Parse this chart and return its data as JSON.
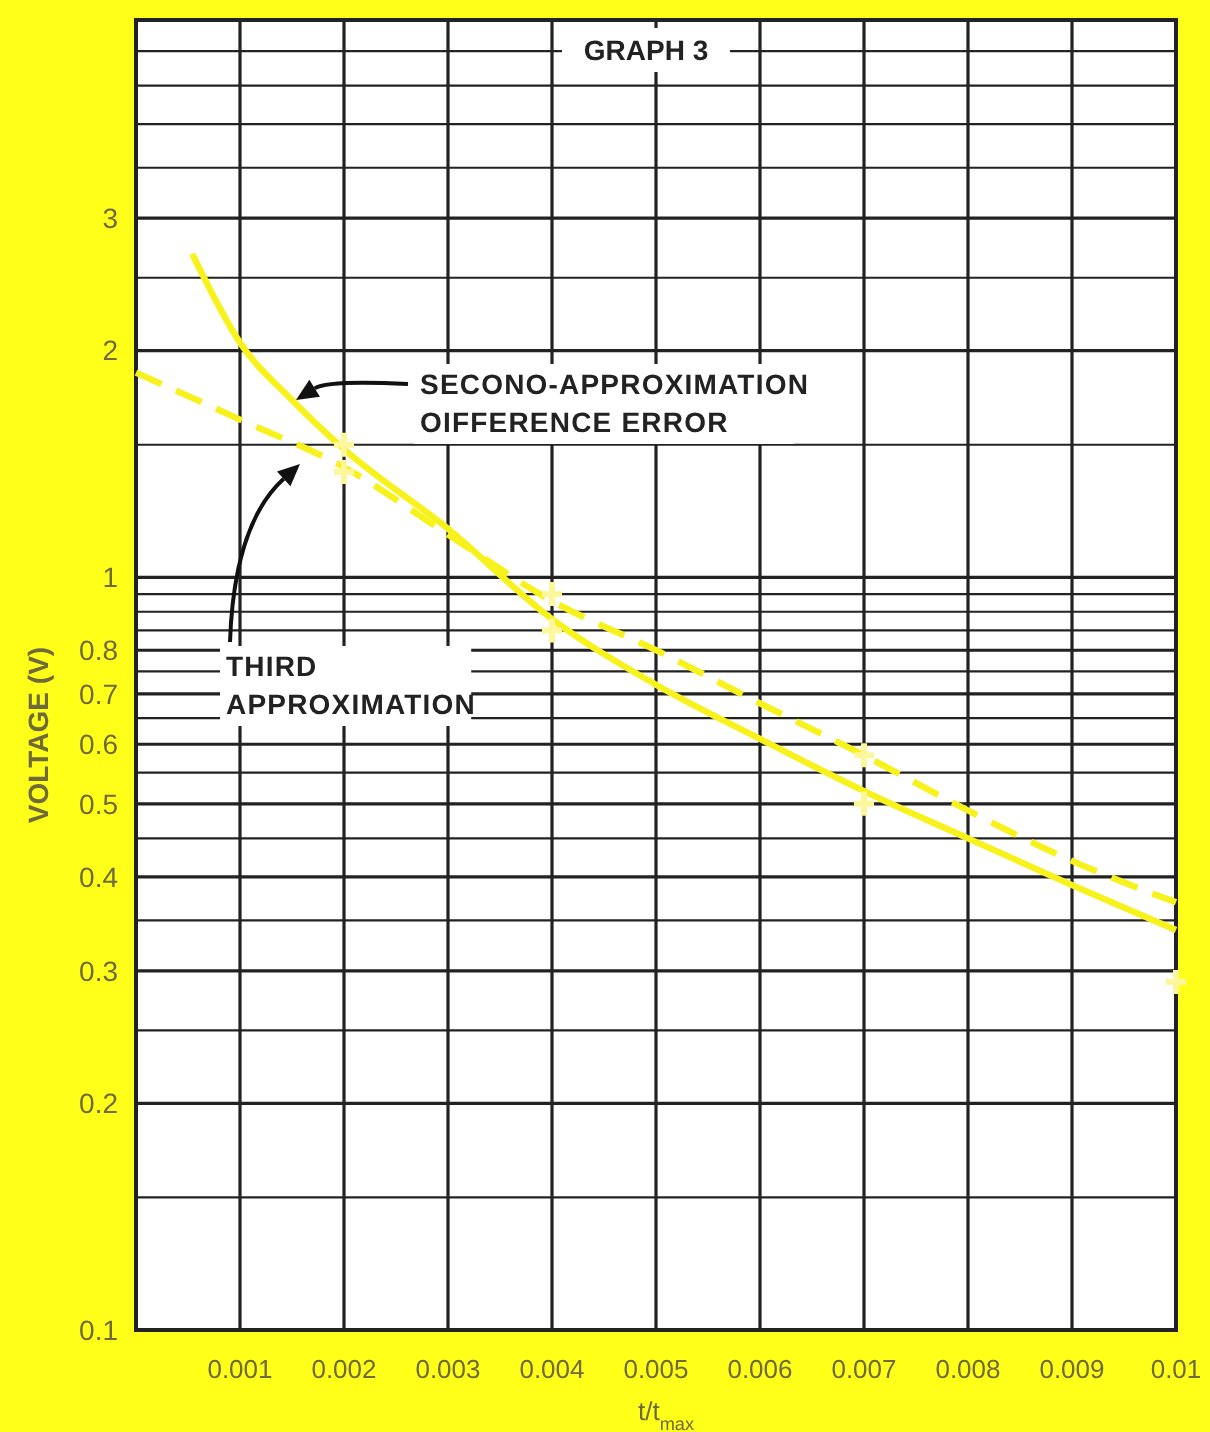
{
  "chart_data": {
    "type": "line",
    "title": "GRAPH 3",
    "xlabel": "t/t$_{max}$",
    "ylabel": "VOLTAGE (V)",
    "log": "y",
    "grid": true,
    "xlim": [
      0,
      0.01
    ],
    "ylim": [
      0.1,
      5.5
    ],
    "xticks": [
      0.001,
      0.002,
      0.003,
      0.004,
      0.005,
      0.006,
      0.007,
      0.008,
      0.009,
      0.01
    ],
    "yticks": [
      0.1,
      {
        "value": 0.15,
        "label": null
      },
      0.2,
      {
        "value": 0.25,
        "label": null
      },
      0.3,
      {
        "value": 0.35,
        "label": null
      },
      0.4,
      {
        "value": 0.45,
        "label": null
      },
      0.5,
      {
        "value": 0.55,
        "label": null
      },
      0.6,
      {
        "value": 0.65,
        "label": null
      },
      0.7,
      {
        "value": 0.75,
        "label": null
      },
      0.8,
      {
        "value": 0.85,
        "label": null
      },
      {
        "value": 0.9,
        "label": null
      },
      {
        "value": 0.95,
        "label": null
      },
      1,
      {
        "value": 1.5,
        "label": null
      },
      2,
      {
        "value": 2.5,
        "label": null
      },
      3,
      {
        "value": 3.5,
        "label": null
      },
      {
        "value": 4,
        "label": null
      },
      {
        "value": 4.5,
        "label": null
      },
      {
        "value": 5,
        "label": null
      }
    ],
    "series": [
      {
        "line_style": "solid",
        "marker": "none",
        "color": "#f7f21c",
        "x": [
          0.00054,
          0.001,
          0.0015,
          0.002,
          0.003,
          0.004,
          0.005,
          0.006,
          0.007,
          0.008,
          0.009,
          0.01
        ],
        "values": [
          2.69,
          2.05,
          1.72,
          1.48,
          1.16,
          0.88,
          0.72,
          0.61,
          0.52,
          0.45,
          0.39,
          0.34
        ]
      },
      {
        "line_style": "dashed",
        "marker": "none",
        "color": "#f7f21c",
        "x": [
          0,
          0.001,
          0.002,
          0.003,
          0.004,
          0.005,
          0.006,
          0.007,
          0.008,
          0.009,
          0.01
        ],
        "values": [
          1.87,
          1.62,
          1.4,
          1.14,
          0.93,
          0.8,
          0.68,
          0.58,
          0.49,
          0.42,
          0.37
        ]
      },
      {
        "type": "scatter",
        "marker": "cross",
        "color": "#fbf79a",
        "x": [
          0.002,
          0.002,
          0.004,
          0.004,
          0.007,
          0.007,
          0.01
        ],
        "values": [
          1.5,
          1.38,
          0.95,
          0.85,
          0.58,
          0.5,
          0.29
        ]
      }
    ],
    "annotations": [
      "SECONO-APPROXIMATION\nOIFFERENCE ERROR",
      "THIRD\nAPPROXIMATION"
    ]
  }
}
